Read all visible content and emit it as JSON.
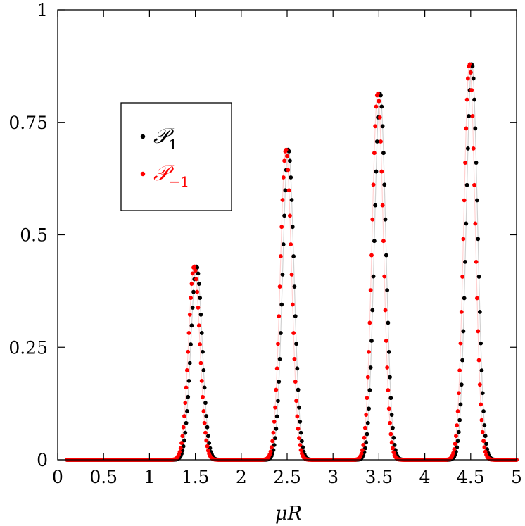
{
  "chart_data": {
    "type": "scatter",
    "title": "",
    "xlabel": "μR",
    "ylabel": "",
    "xlim": [
      0,
      5
    ],
    "ylim": [
      0,
      1
    ],
    "xticks": [
      "0",
      "0.5",
      "1",
      "1.5",
      "2",
      "2.5",
      "3",
      "3.5",
      "4",
      "4.5",
      "5"
    ],
    "yticks": [
      "0",
      "0.25",
      "0.5",
      "0.75",
      "1"
    ],
    "grid": false,
    "legend_position": "upper-left",
    "series": [
      {
        "name": "𝒫",
        "subscript": "1",
        "color": "#000000",
        "peaks": [
          {
            "x": 1.5,
            "y": 0.43
          },
          {
            "x": 2.5,
            "y": 0.69
          },
          {
            "x": 3.5,
            "y": 0.815
          },
          {
            "x": 4.5,
            "y": 0.88
          }
        ],
        "shift": 0.013,
        "sample_x_range": [
          0.1,
          5.0
        ],
        "sample_step": 0.01
      },
      {
        "name": "𝒫",
        "subscript": "−1",
        "color": "#ff0000",
        "peaks": [
          {
            "x": 1.5,
            "y": 0.43
          },
          {
            "x": 2.5,
            "y": 0.69
          },
          {
            "x": 3.5,
            "y": 0.815
          },
          {
            "x": 4.5,
            "y": 0.88
          }
        ],
        "shift": -0.013,
        "sample_x_range": [
          0.1,
          5.0
        ],
        "sample_step": 0.01
      }
    ]
  }
}
